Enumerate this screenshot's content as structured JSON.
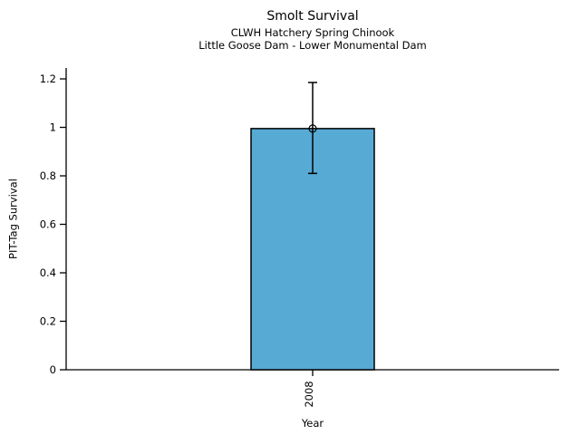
{
  "chart_data": {
    "type": "bar",
    "title": "Smolt Survival",
    "subtitle1": "CLWH Hatchery Spring Chinook",
    "subtitle2": "Little Goose Dam - Lower Monumental Dam",
    "xlabel": "Year",
    "ylabel": "PIT-Tag Survival",
    "categories": [
      "2008"
    ],
    "values": [
      0.995
    ],
    "error_low": [
      0.81
    ],
    "error_high": [
      1.185
    ],
    "marker": "open-circle",
    "yticks": [
      0,
      0.2,
      0.4,
      0.6,
      0.8,
      1,
      1.2
    ],
    "ytick_labels": [
      "0",
      "0.2",
      "0.4",
      "0.6",
      "0.8",
      "1",
      "1.2"
    ],
    "ylim": [
      0,
      1.245
    ],
    "xtick_rotation": 90,
    "grid": false,
    "legend_position": "none",
    "colors": {
      "bar_fill": "#57AAD4",
      "bar_edge": "#000000",
      "errorbar": "#000000",
      "axis": "#000000",
      "text": "#000000",
      "background": "#ffffff"
    }
  }
}
